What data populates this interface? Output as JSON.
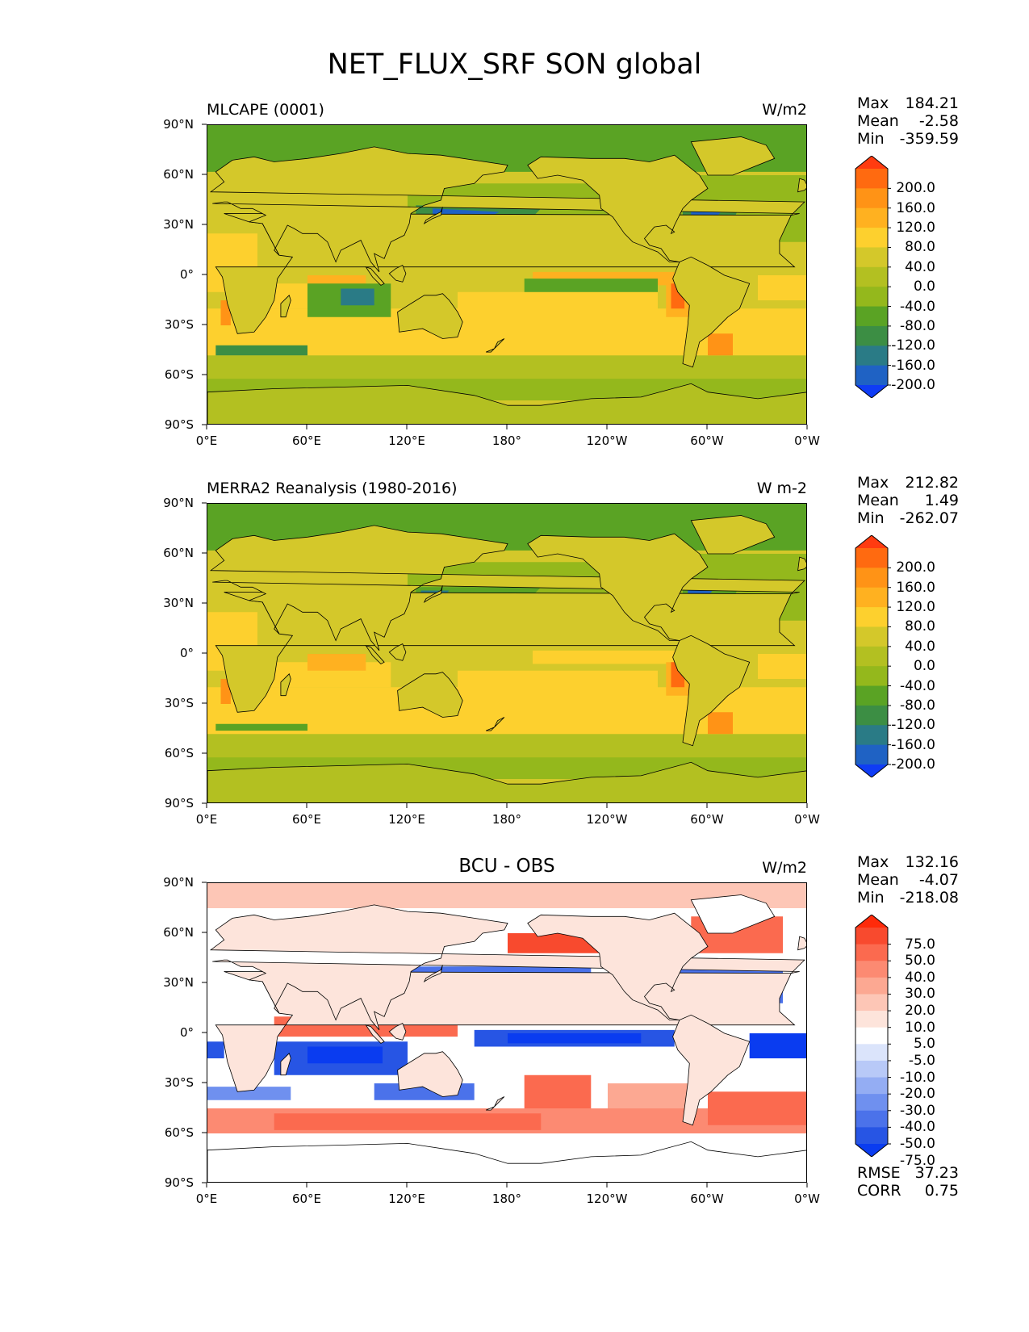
{
  "figure_title": "NET_FLUX_SRF SON global",
  "lat_ticks": [
    "90°N",
    "60°N",
    "30°N",
    "0°",
    "30°S",
    "60°S",
    "90°S"
  ],
  "lon_ticks": [
    "0°E",
    "60°E",
    "120°E",
    "180°",
    "120°W",
    "60°W",
    "0°W"
  ],
  "panels": [
    {
      "title_left": "MLCAPE (0001)",
      "title_center": "",
      "units": "W/m2",
      "stats": {
        "max_label": "Max",
        "max": "184.21",
        "mean_label": "Mean",
        "mean": "-2.58",
        "min_label": "Min",
        "min": "-359.59"
      },
      "colorbar": {
        "labels": [
          "200.0",
          "160.0",
          "120.0",
          "80.0",
          "40.0",
          "0.0",
          "-40.0",
          "-80.0",
          "-120.0",
          "-160.0",
          "-200.0"
        ],
        "colors": [
          "#ff3b10",
          "#ff6a10",
          "#ff9316",
          "#ffb120",
          "#fdd02e",
          "#d4c82a",
          "#b3c021",
          "#94b81c",
          "#5aa324",
          "#3c8e44",
          "#2a7b86",
          "#1f62c4",
          "#0f3cf5"
        ]
      },
      "field": "model"
    },
    {
      "title_left": "MERRA2 Reanalysis (1980-2016)",
      "title_center": "",
      "units": "W m-2",
      "stats": {
        "max_label": "Max",
        "max": "212.82",
        "mean_label": "Mean",
        "mean": "1.49",
        "min_label": "Min",
        "min": "-262.07"
      },
      "colorbar": {
        "labels": [
          "200.0",
          "160.0",
          "120.0",
          "80.0",
          "40.0",
          "0.0",
          "-40.0",
          "-80.0",
          "-120.0",
          "-160.0",
          "-200.0"
        ],
        "colors": [
          "#ff3b10",
          "#ff6a10",
          "#ff9316",
          "#ffb120",
          "#fdd02e",
          "#d4c82a",
          "#b3c021",
          "#94b81c",
          "#5aa324",
          "#3c8e44",
          "#2a7b86",
          "#1f62c4",
          "#0f3cf5"
        ]
      },
      "field": "obs"
    },
    {
      "title_left": "",
      "title_center": "BCU - OBS",
      "units": "W/m2",
      "stats": {
        "max_label": "Max",
        "max": "132.16",
        "mean_label": "Mean",
        "mean": "-4.07",
        "min_label": "Min",
        "min": "-218.08"
      },
      "colorbar": {
        "labels": [
          "75.0",
          "50.0",
          "40.0",
          "30.0",
          "20.0",
          "10.0",
          "5.0",
          "-5.0",
          "-10.0",
          "-20.0",
          "-30.0",
          "-40.0",
          "-50.0",
          "-75.0"
        ],
        "colors": [
          "#ff2a0a",
          "#f84a2e",
          "#fb6a4f",
          "#fc8a72",
          "#fca892",
          "#fdc6b6",
          "#fde4db",
          "#ffffff",
          "#dbe4fb",
          "#b8c9f7",
          "#94adf3",
          "#6f90ef",
          "#4b72ea",
          "#2755e4",
          "#0a3cf0"
        ]
      },
      "field": "diff"
    }
  ],
  "error_stats": {
    "rmse_label": "RMSE",
    "rmse": "37.23",
    "corr_label": "CORR",
    "corr": "0.75"
  }
}
